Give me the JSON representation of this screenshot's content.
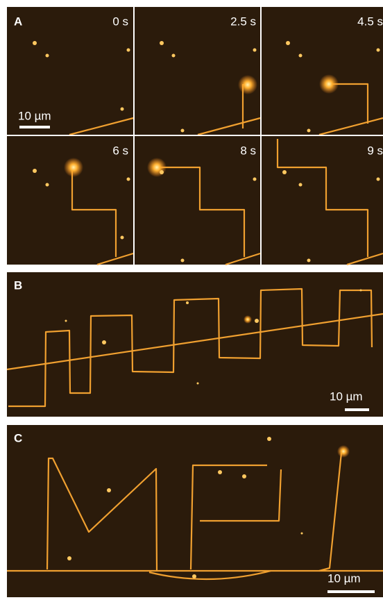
{
  "panel_a": {
    "label": "A",
    "frames": [
      "0 s",
      "2.5 s",
      "4.5 s",
      "6 s",
      "8 s",
      "9 s"
    ],
    "scale_bar": "10 µm"
  },
  "panel_b": {
    "label": "B",
    "scale_bar": "10 µm"
  },
  "panel_c": {
    "label": "C",
    "scale_bar": "10 µm"
  }
}
